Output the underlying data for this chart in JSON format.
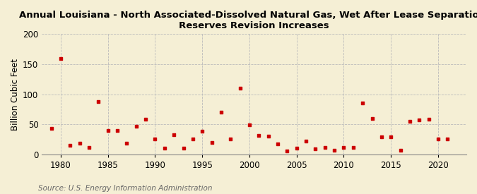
{
  "title": "Annual Louisiana - North Associated-Dissolved Natural Gas, Wet After Lease Separation,\nReserves Revision Increases",
  "ylabel": "Billion Cubic Feet",
  "source": "Source: U.S. Energy Information Administration",
  "background_color": "#f5efd5",
  "plot_background_color": "#f5efd5",
  "marker_color": "#cc0000",
  "years": [
    1979,
    1980,
    1981,
    1982,
    1983,
    1984,
    1985,
    1986,
    1987,
    1988,
    1989,
    1990,
    1991,
    1992,
    1993,
    1994,
    1995,
    1996,
    1997,
    1998,
    1999,
    2000,
    2001,
    2002,
    2003,
    2004,
    2005,
    2006,
    2007,
    2008,
    2009,
    2010,
    2011,
    2012,
    2013,
    2014,
    2015,
    2016,
    2017,
    2018,
    2019,
    2020,
    2021
  ],
  "values": [
    43,
    159,
    15,
    18,
    11,
    88,
    40,
    40,
    19,
    47,
    58,
    25,
    10,
    33,
    10,
    25,
    38,
    20,
    70,
    25,
    110,
    49,
    31,
    30,
    17,
    6,
    10,
    22,
    9,
    11,
    7,
    11,
    11,
    85,
    59,
    29,
    29,
    7,
    55,
    57,
    58,
    25,
    25
  ],
  "xlim": [
    1978,
    2023
  ],
  "ylim": [
    0,
    200
  ],
  "yticks": [
    0,
    50,
    100,
    150,
    200
  ],
  "xticks": [
    1980,
    1985,
    1990,
    1995,
    2000,
    2005,
    2010,
    2015,
    2020
  ],
  "grid_color": "#bbbbbb",
  "title_fontsize": 9.5,
  "axis_fontsize": 8.5,
  "source_fontsize": 7.5
}
